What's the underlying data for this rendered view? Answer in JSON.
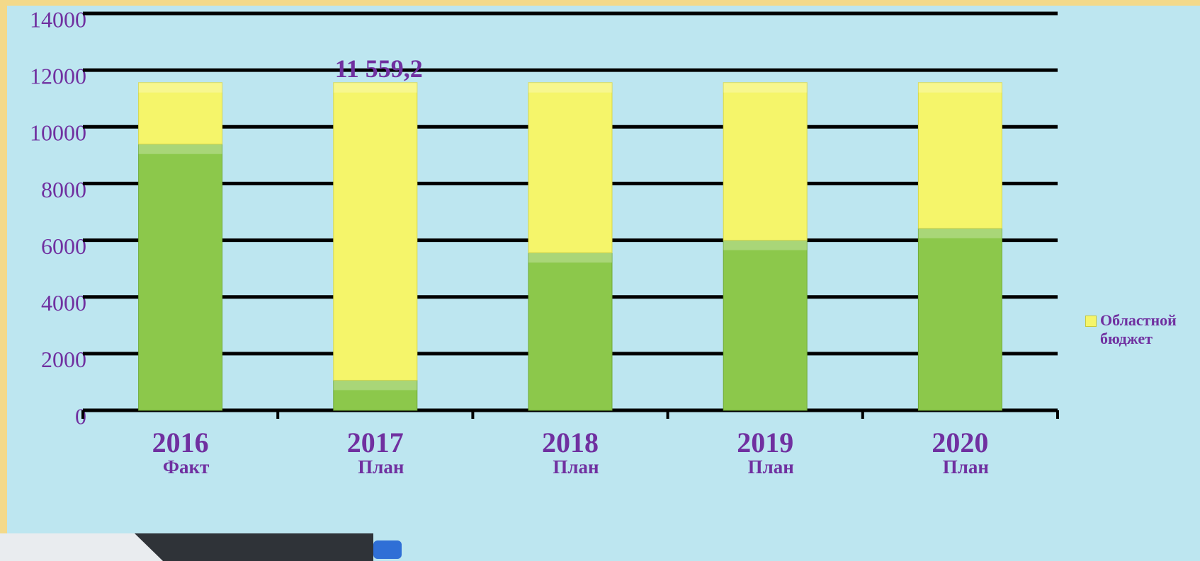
{
  "chart_data": {
    "type": "stacked_bar",
    "categories": [
      "2016",
      "2017",
      "2018",
      "2019",
      "2020"
    ],
    "category_sublabels": [
      "Факт",
      "План",
      "План",
      "План",
      "План"
    ],
    "series": [
      {
        "color": "#8cc84b",
        "values": [
          9390,
          1062,
          5560,
          6000,
          6420
        ]
      },
      {
        "name": "Областной бюджет",
        "color": "#f5f56a",
        "values": [
          2170,
          10497.2,
          6000,
          5560,
          5140
        ]
      }
    ],
    "annotations": [
      {
        "text": "11 559,2",
        "category": 1,
        "value": 11559.2
      }
    ],
    "ylim": [
      0,
      14000
    ],
    "yticks": [
      0,
      2000,
      4000,
      6000,
      8000,
      10000,
      12000,
      14000
    ],
    "grid": true,
    "legend": "right"
  }
}
